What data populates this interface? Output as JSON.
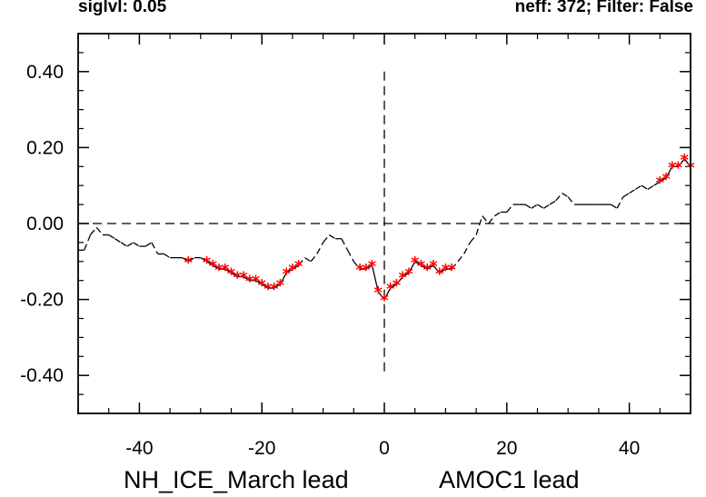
{
  "header": {
    "left_text": "siglvl: 0.05",
    "right_text": "neff: 372; Filter: False"
  },
  "chart_data": {
    "type": "line",
    "xlabel_left": "NH_ICE_March lead",
    "xlabel_right": "AMOC1 lead",
    "xlim": [
      -50,
      50
    ],
    "ylim": [
      -0.5,
      0.5
    ],
    "x_ticks": [
      -40,
      -20,
      0,
      20,
      40
    ],
    "x_tick_labels": [
      "-40",
      "-20",
      "0",
      "20",
      "40"
    ],
    "y_ticks": [
      0.4,
      0.2,
      0.0,
      -0.2,
      -0.4
    ],
    "y_tick_labels": [
      "0.40",
      "0.20",
      "0.00",
      "-0.20",
      "-0.40"
    ],
    "reference_lines": {
      "horizontal_y": 0.0,
      "vertical_x": 0,
      "vertical_y_range": [
        -0.4,
        0.4
      ]
    },
    "colors": {
      "line": "#000000",
      "significant_marker": "#ff0000",
      "reference": "#000000"
    },
    "series": [
      {
        "x": [
          -50,
          -49,
          -48,
          -47,
          -46,
          -45,
          -44,
          -43,
          -42,
          -41,
          -40,
          -39,
          -38,
          -37,
          -36,
          -35,
          -34,
          -33,
          -32,
          -31,
          -30,
          -29,
          -28,
          -27,
          -26,
          -25,
          -24,
          -23,
          -22,
          -21,
          -20,
          -19,
          -18,
          -17,
          -16,
          -15,
          -14,
          -13,
          -12,
          -11,
          -10,
          -9,
          -8,
          -7,
          -6,
          -5,
          -4,
          -3,
          -2,
          -1,
          0,
          1,
          2,
          3,
          4,
          5,
          6,
          7,
          8,
          9,
          10,
          11,
          12,
          13,
          14,
          15,
          16,
          17,
          18,
          19,
          20,
          21,
          22,
          23,
          24,
          25,
          26,
          27,
          28,
          29,
          30,
          31,
          32,
          33,
          34,
          35,
          36,
          37,
          38,
          39,
          40,
          41,
          42,
          43,
          44,
          45,
          46,
          47,
          48,
          49,
          50
        ],
        "y": [
          -0.07,
          -0.07,
          -0.03,
          -0.01,
          -0.03,
          -0.03,
          -0.04,
          -0.05,
          -0.06,
          -0.05,
          -0.06,
          -0.06,
          -0.05,
          -0.08,
          -0.08,
          -0.09,
          -0.09,
          -0.09,
          -0.1,
          -0.09,
          -0.09,
          -0.1,
          -0.11,
          -0.12,
          -0.12,
          -0.13,
          -0.14,
          -0.14,
          -0.15,
          -0.15,
          -0.16,
          -0.17,
          -0.17,
          -0.16,
          -0.13,
          -0.12,
          -0.11,
          -0.09,
          -0.1,
          -0.08,
          -0.05,
          -0.03,
          -0.04,
          -0.04,
          -0.07,
          -0.1,
          -0.12,
          -0.12,
          -0.11,
          -0.18,
          -0.2,
          -0.17,
          -0.16,
          -0.14,
          -0.13,
          -0.1,
          -0.11,
          -0.12,
          -0.11,
          -0.13,
          -0.12,
          -0.12,
          -0.1,
          -0.08,
          -0.05,
          -0.03,
          0.02,
          0.0,
          0.02,
          0.03,
          0.03,
          0.05,
          0.05,
          0.05,
          0.04,
          0.05,
          0.04,
          0.05,
          0.06,
          0.08,
          0.07,
          0.05,
          0.05,
          0.05,
          0.05,
          0.05,
          0.05,
          0.05,
          0.04,
          0.07,
          0.08,
          0.09,
          0.1,
          0.09,
          0.1,
          0.11,
          0.12,
          0.15,
          0.15,
          0.17,
          0.15
        ],
        "significant_x": [
          -32,
          -29,
          -28,
          -27,
          -26,
          -25,
          -24,
          -23,
          -22,
          -21,
          -20,
          -19,
          -18,
          -17,
          -16,
          -15,
          -14,
          -4,
          -3,
          -2,
          -1,
          0,
          1,
          2,
          3,
          4,
          5,
          6,
          7,
          8,
          9,
          10,
          11,
          45,
          46,
          47,
          48,
          49,
          50
        ]
      }
    ]
  }
}
